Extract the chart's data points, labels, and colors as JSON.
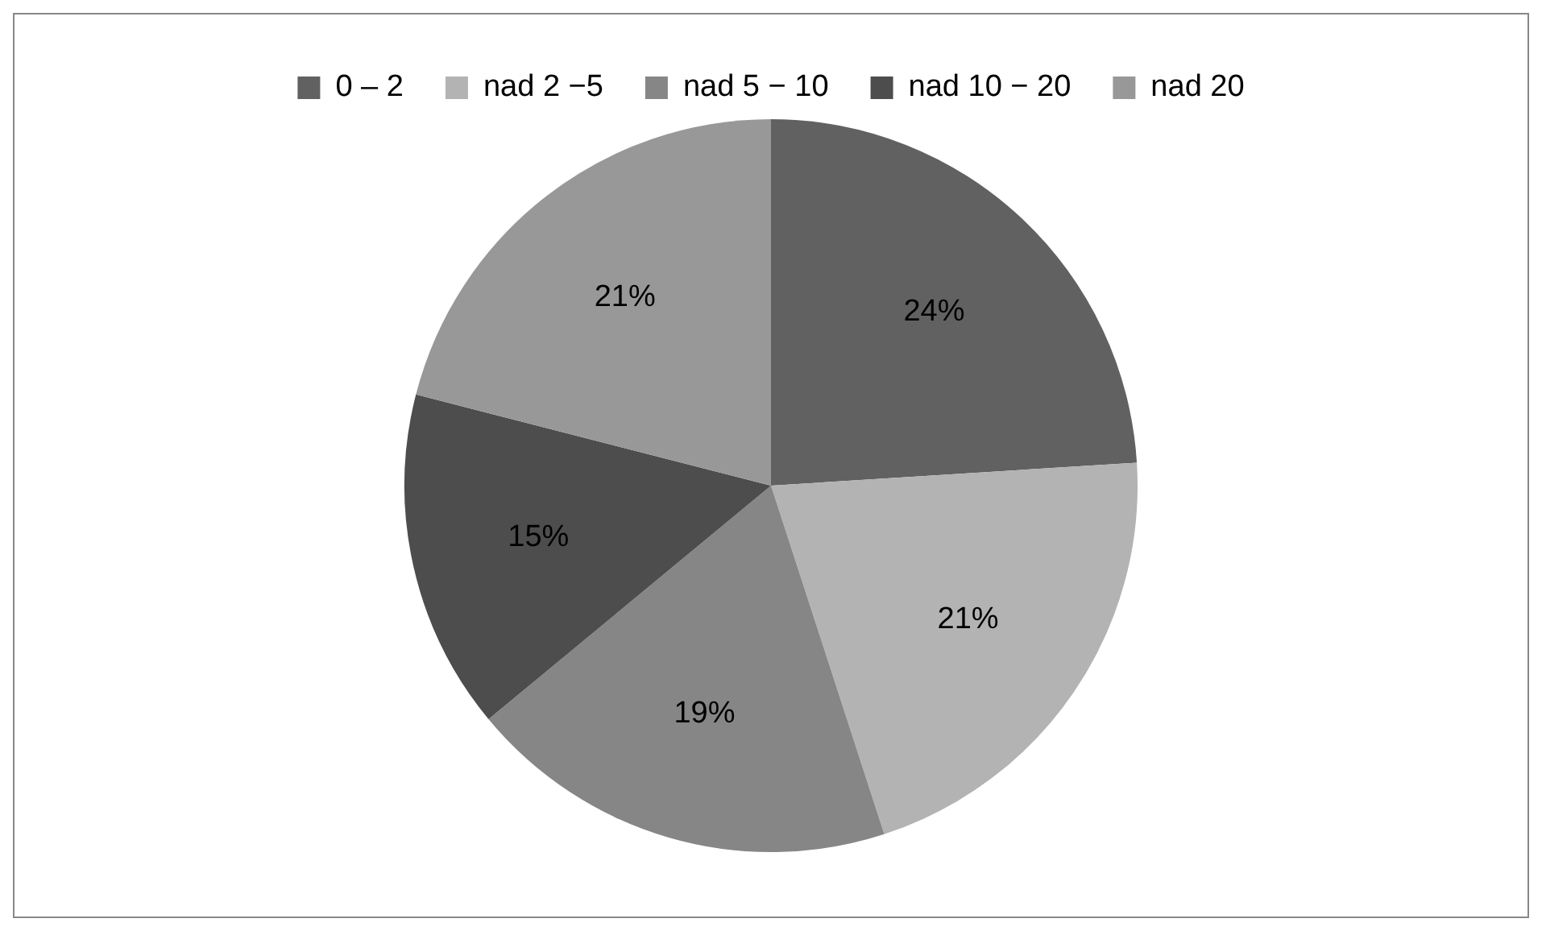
{
  "chart_data": {
    "type": "pie",
    "categories": [
      "0 – 2",
      "nad 2 −5",
      "nad 5 − 10",
      "nad 10 − 20",
      "nad 20"
    ],
    "values": [
      24,
      21,
      19,
      15,
      21
    ],
    "colors": [
      "#616161",
      "#b3b3b3",
      "#868686",
      "#4d4d4d",
      "#989898"
    ],
    "value_labels": [
      "24%",
      "21%",
      "19%",
      "15%",
      "21%"
    ],
    "legend": "top"
  }
}
